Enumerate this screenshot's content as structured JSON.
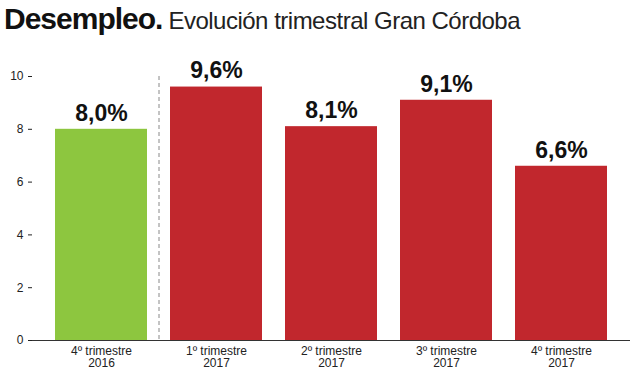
{
  "chart_data": {
    "type": "bar",
    "title": "Desempleo.",
    "subtitle": "Evolución trimestral Gran Córdoba",
    "categories": [
      "4º trimestre\n2016",
      "1º trimestre\n2017",
      "2º trimestre\n2017",
      "3º trimestre\n2017",
      "4º trimestre\n2017"
    ],
    "values": [
      8.0,
      9.6,
      8.1,
      9.1,
      6.6
    ],
    "value_labels": [
      "8,0%",
      "9,6%",
      "8,1%",
      "9,1%",
      "6,6%"
    ],
    "colors": [
      "#8dc63f",
      "#c1272d",
      "#c1272d",
      "#c1272d",
      "#c1272d"
    ],
    "ylim": [
      0,
      10
    ],
    "yticks": [
      0,
      2,
      4,
      6,
      8,
      10
    ],
    "grid": false,
    "data_labels": true
  }
}
